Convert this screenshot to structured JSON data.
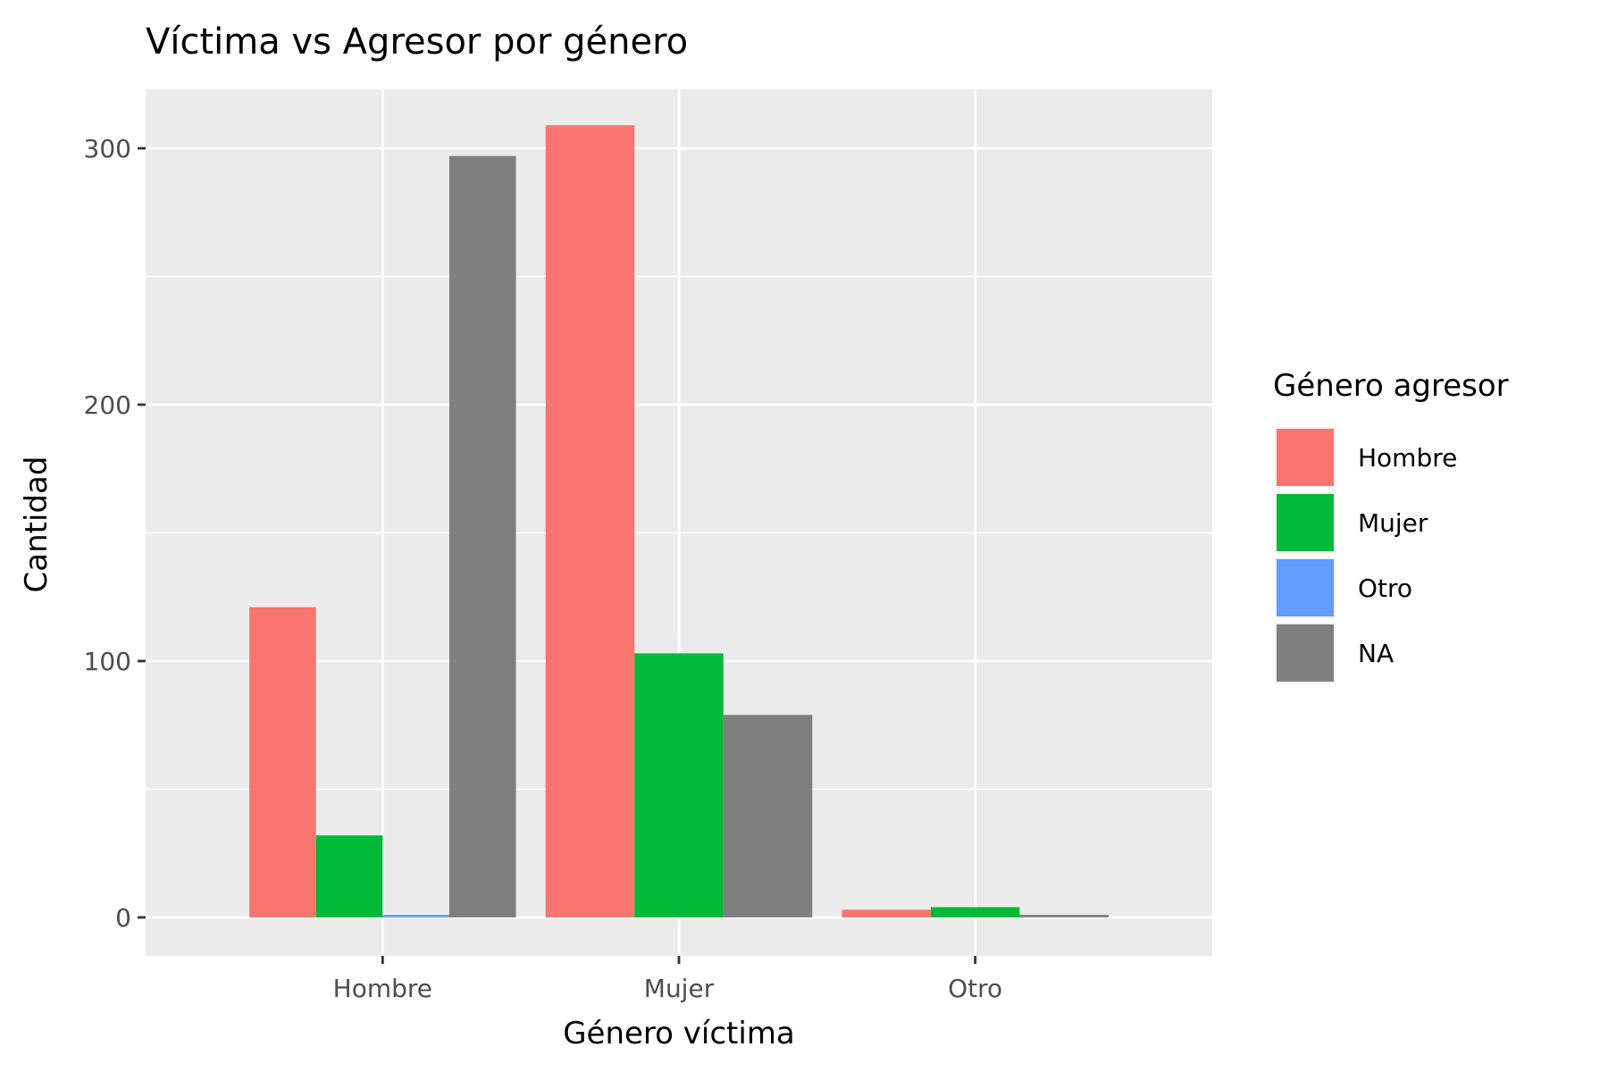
{
  "chart_data": {
    "type": "bar",
    "title": "Víctima vs Agresor por género",
    "xlabel": "Género víctima",
    "ylabel": "Cantidad",
    "categories": [
      "Hombre",
      "Mujer",
      "Otro"
    ],
    "y_ticks": [
      0,
      100,
      200,
      300
    ],
    "ylim": [
      -15,
      323
    ],
    "grid": true,
    "legend": {
      "title": "Género agresor",
      "position": "right"
    },
    "series": [
      {
        "name": "Hombre",
        "color": "#F8766D",
        "values": [
          121,
          309,
          3
        ]
      },
      {
        "name": "Mujer",
        "color": "#00BA38",
        "values": [
          32,
          103,
          4
        ]
      },
      {
        "name": "Otro",
        "color": "#619CFF",
        "values": [
          1,
          null,
          null
        ]
      },
      {
        "name": "NA",
        "color": "#7F7F7F",
        "values": [
          297,
          79,
          1
        ]
      }
    ]
  }
}
